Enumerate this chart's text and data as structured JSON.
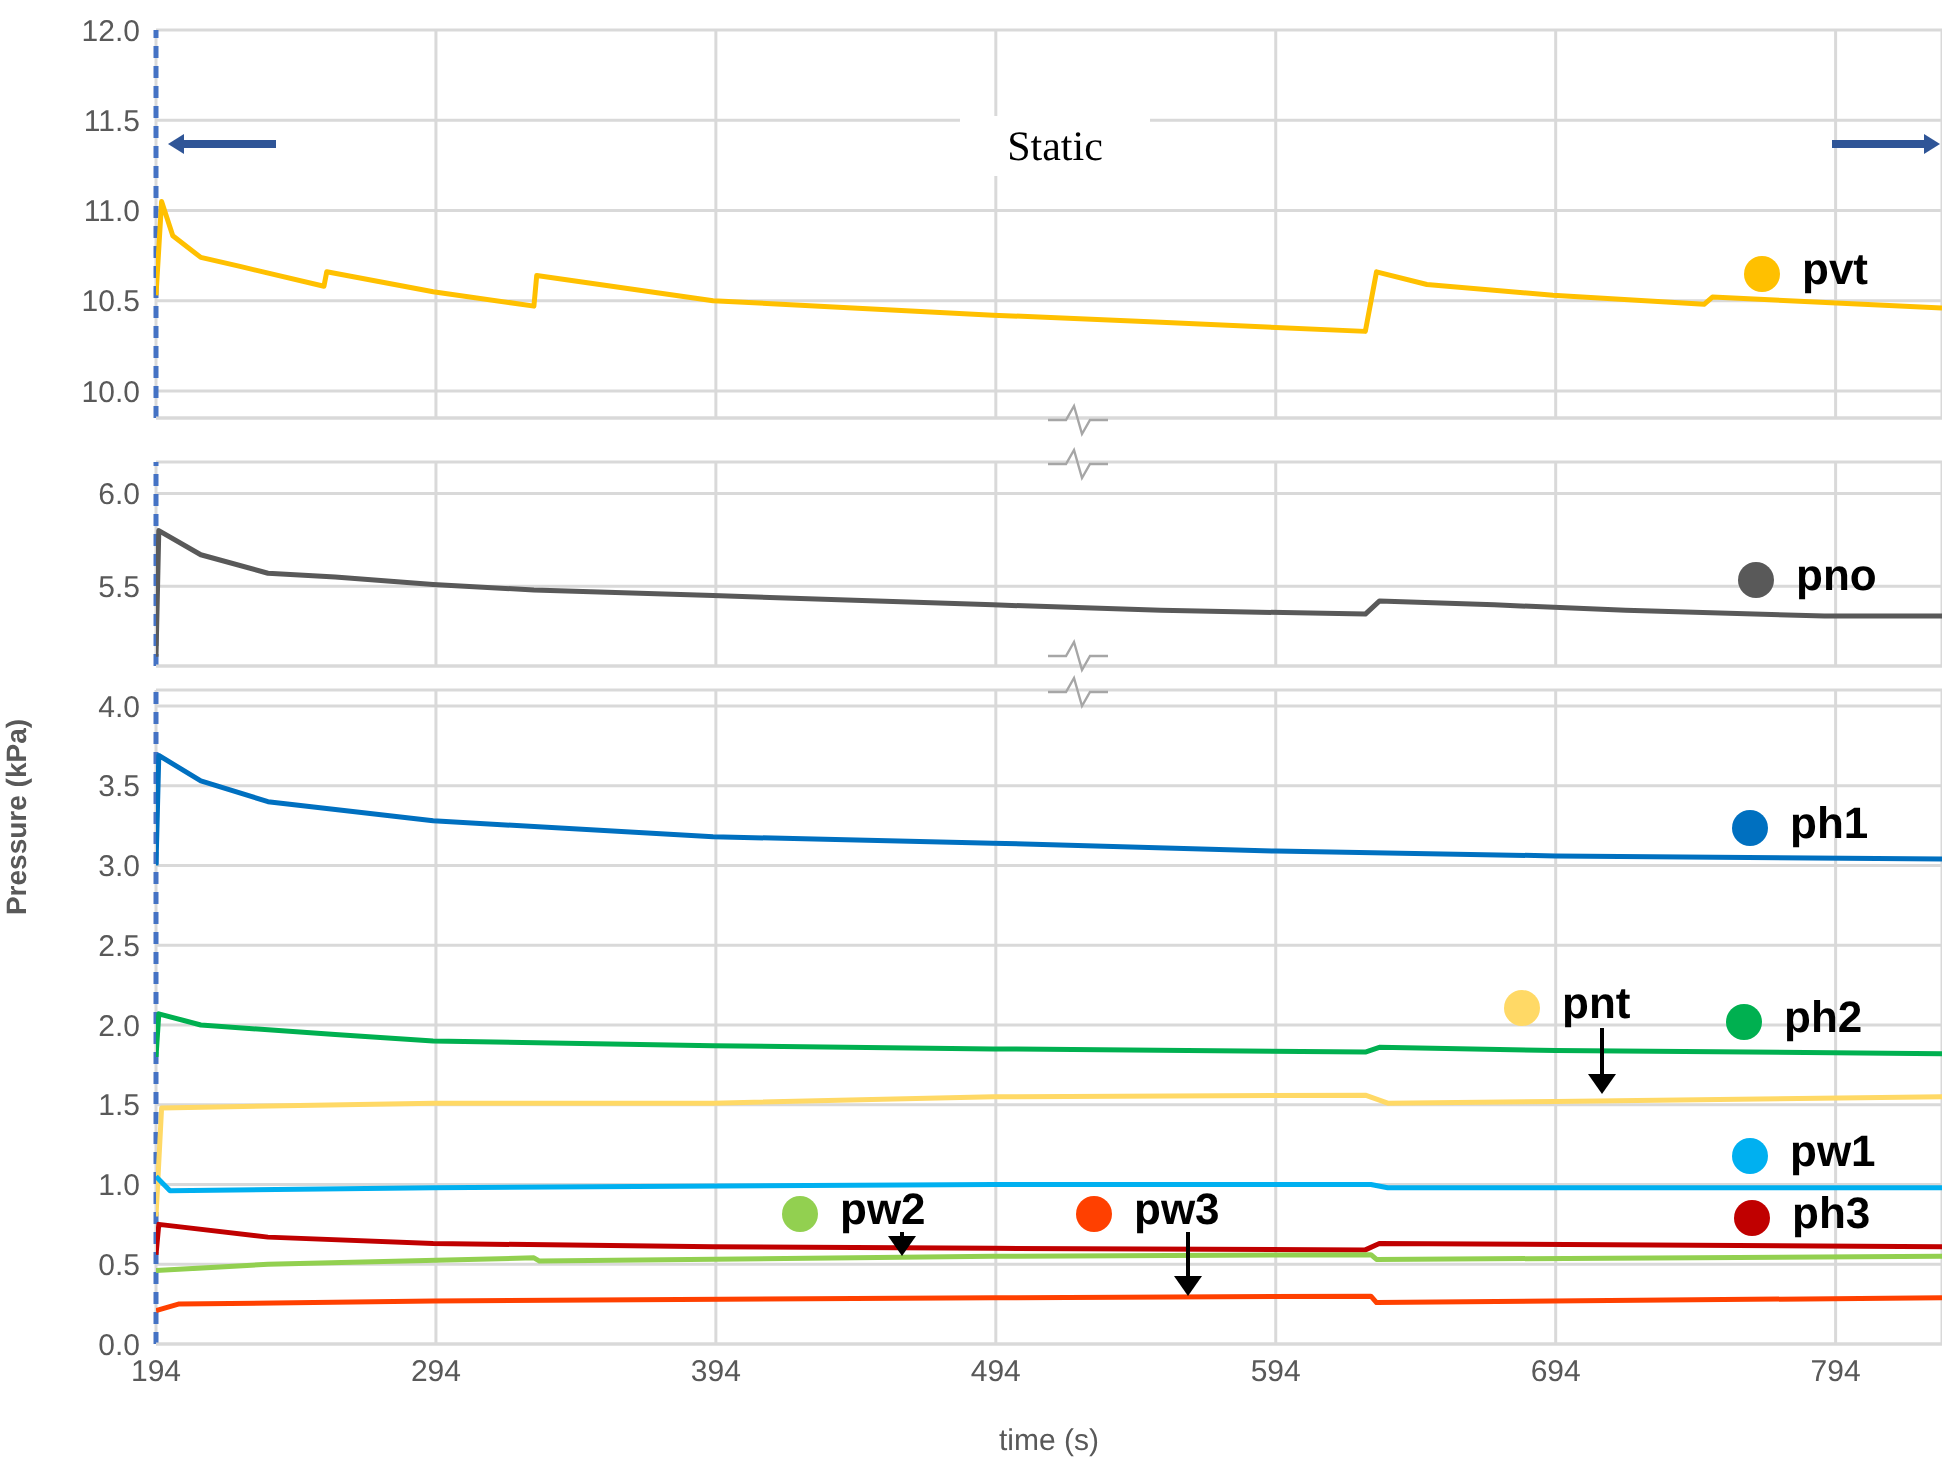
{
  "chart_data": [
    {
      "type": "line",
      "annotations": [
        "Static"
      ],
      "xlim": [
        194,
        832
      ],
      "xticks": [
        194,
        294,
        394,
        494,
        594,
        694,
        794
      ],
      "legend": "right",
      "ylim": [
        9.85,
        12.0
      ],
      "yticks": [
        {
          "value": 10,
          "label": "10.0"
        },
        {
          "value": 10.5,
          "label": "10.5"
        },
        {
          "value": 11,
          "label": "11.0"
        },
        {
          "value": 11.5,
          "label": "11.5"
        },
        {
          "value": 12,
          "label": "12.0"
        }
      ],
      "grid": true,
      "tick_labels": "y",
      "ref_lines": [
        {
          "axis": "x",
          "value": 194,
          "color": "#4472c4",
          "line_style": "dashed"
        }
      ],
      "series": [
        {
          "name": "pvt",
          "color": "#ffc000",
          "x": [
            194,
            196,
            200,
            210,
            224,
            254,
            255,
            293,
            329,
            330,
            393,
            443,
            493,
            553,
            626,
            630,
            648,
            693,
            747,
            750,
            832
          ],
          "values": [
            10.53,
            11.05,
            10.86,
            10.74,
            10.69,
            10.58,
            10.66,
            10.55,
            10.47,
            10.64,
            10.5,
            10.46,
            10.42,
            10.38,
            10.33,
            10.66,
            10.59,
            10.53,
            10.48,
            10.52,
            10.46
          ]
        }
      ]
    },
    {
      "type": "line",
      "xlim": [
        194,
        832
      ],
      "xticks": [
        194,
        294,
        394,
        494,
        594,
        694,
        794
      ],
      "legend": "right",
      "ylim": [
        5.07,
        6.17
      ],
      "yticks": [
        {
          "value": 5.5,
          "label": "5.5"
        },
        {
          "value": 6,
          "label": "6.0"
        }
      ],
      "grid": true,
      "tick_labels": "y",
      "ref_lines": [
        {
          "axis": "x",
          "value": 194,
          "color": "#4472c4",
          "line_style": "dashed"
        }
      ],
      "series": [
        {
          "name": "pno",
          "color": "#595959",
          "x": [
            194,
            195,
            210,
            234,
            258,
            293,
            329,
            393,
            493,
            553,
            626,
            631,
            672,
            719,
            790,
            832
          ],
          "values": [
            5.12,
            5.8,
            5.67,
            5.57,
            5.55,
            5.51,
            5.48,
            5.45,
            5.4,
            5.37,
            5.35,
            5.42,
            5.4,
            5.37,
            5.34,
            5.34
          ]
        }
      ]
    },
    {
      "type": "line",
      "xlabel": "time (s)",
      "ylabel": "Pressure (kPa)",
      "xlim": [
        194,
        832
      ],
      "xticks": [
        194,
        294,
        394,
        494,
        594,
        694,
        794
      ],
      "legend": "right",
      "ylim": [
        0,
        4.1
      ],
      "yticks": [
        {
          "value": 0,
          "label": "0.0"
        },
        {
          "value": 0.5,
          "label": "0.5"
        },
        {
          "value": 1,
          "label": "1.0"
        },
        {
          "value": 1.5,
          "label": "1.5"
        },
        {
          "value": 2,
          "label": "2.0"
        },
        {
          "value": 2.5,
          "label": "2.5"
        },
        {
          "value": 3,
          "label": "3.0"
        },
        {
          "value": 3.5,
          "label": "3.5"
        },
        {
          "value": 4,
          "label": "4.0"
        }
      ],
      "grid": true,
      "ref_lines": [
        {
          "axis": "x",
          "value": 194,
          "color": "#4472c4",
          "line_style": "dashed"
        }
      ],
      "series": [
        {
          "name": "ph1",
          "color": "#0070c0",
          "x": [
            194,
            195,
            210,
            234,
            293,
            393,
            493,
            594,
            694,
            832
          ],
          "values": [
            3.0,
            3.69,
            3.53,
            3.4,
            3.28,
            3.18,
            3.14,
            3.09,
            3.06,
            3.04
          ]
        },
        {
          "name": "ph2",
          "color": "#00b050",
          "x": [
            194,
            195,
            210,
            258,
            293,
            393,
            493,
            626,
            631,
            694,
            832
          ],
          "values": [
            1.8,
            2.07,
            2.0,
            1.94,
            1.9,
            1.87,
            1.85,
            1.83,
            1.86,
            1.84,
            1.82
          ]
        },
        {
          "name": "pnt",
          "color": "#ffd966",
          "x": [
            194,
            196,
            293,
            393,
            493,
            626,
            634,
            694,
            832
          ],
          "values": [
            0.8,
            1.48,
            1.51,
            1.51,
            1.55,
            1.56,
            1.51,
            1.52,
            1.55
          ]
        },
        {
          "name": "pw1",
          "color": "#00b0f0",
          "x": [
            194,
            199,
            293,
            493,
            628,
            634,
            832
          ],
          "values": [
            1.05,
            0.96,
            0.98,
            1.0,
            1.0,
            0.98,
            0.98
          ]
        },
        {
          "name": "ph3",
          "color": "#c00000",
          "x": [
            194,
            195,
            234,
            293,
            393,
            493,
            626,
            631,
            832
          ],
          "values": [
            0.56,
            0.75,
            0.67,
            0.63,
            0.61,
            0.6,
            0.59,
            0.63,
            0.61
          ]
        },
        {
          "name": "pw2",
          "color": "#92d050",
          "x": [
            194,
            234,
            329,
            331,
            493,
            628,
            630,
            832
          ],
          "values": [
            0.46,
            0.5,
            0.54,
            0.52,
            0.55,
            0.56,
            0.53,
            0.55
          ]
        },
        {
          "name": "pw3",
          "color": "#ff4000",
          "x": [
            194,
            202,
            293,
            493,
            628,
            630,
            832
          ],
          "values": [
            0.21,
            0.25,
            0.27,
            0.29,
            0.3,
            0.26,
            0.29
          ]
        }
      ]
    }
  ]
}
